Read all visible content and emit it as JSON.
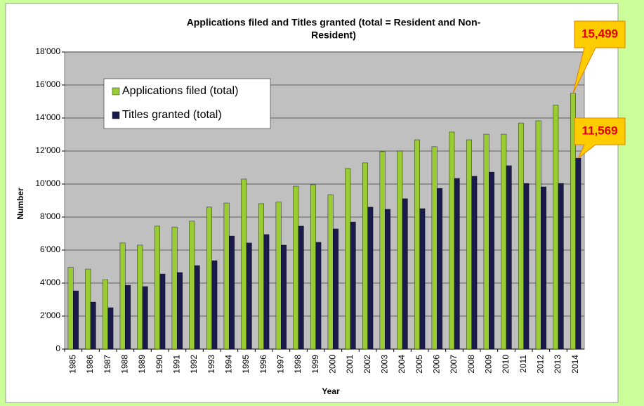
{
  "chart_data": {
    "type": "bar",
    "title": [
      "Applications filed and Titles granted (total = Resident and Non-",
      "Resident)"
    ],
    "x_label": "Year",
    "y_label": "Number",
    "categories": [
      "1985",
      "1986",
      "1987",
      "1988",
      "1989",
      "1990",
      "1991",
      "1992",
      "1993",
      "1994",
      "1995",
      "1996",
      "1997",
      "1998",
      "1999",
      "2000",
      "2001",
      "2002",
      "2003",
      "2004",
      "2005",
      "2006",
      "2007",
      "2008",
      "2009",
      "2010",
      "2011",
      "2012",
      "2013",
      "2014"
    ],
    "series": [
      {
        "name": "Applications filed (total)",
        "color": "#99cc33",
        "values": [
          4950,
          4850,
          4210,
          6430,
          6300,
          7450,
          7400,
          7750,
          8600,
          8850,
          10300,
          8810,
          8900,
          9870,
          9960,
          9360,
          10940,
          11280,
          11960,
          12000,
          12680,
          12260,
          13150,
          12680,
          13020,
          13020,
          13700,
          13830,
          14770,
          15499
        ],
        "value_labels": [
          null,
          null,
          null,
          null,
          null,
          null,
          null,
          null,
          null,
          null,
          null,
          null,
          null,
          null,
          null,
          null,
          null,
          null,
          null,
          null,
          null,
          null,
          null,
          null,
          null,
          null,
          null,
          null,
          null,
          "15,499"
        ]
      },
      {
        "name": "Titles granted (total)",
        "color": "#1a1a4d",
        "values": [
          3530,
          2850,
          2510,
          3870,
          3790,
          4550,
          4640,
          5060,
          5360,
          6850,
          6430,
          6940,
          6300,
          7450,
          6470,
          7280,
          7700,
          8600,
          8470,
          9110,
          8510,
          9740,
          10340,
          10470,
          10720,
          11110,
          10040,
          9830,
          10040,
          11569
        ],
        "value_labels": [
          null,
          null,
          null,
          null,
          null,
          null,
          null,
          null,
          null,
          null,
          null,
          null,
          null,
          null,
          null,
          null,
          null,
          null,
          null,
          null,
          null,
          null,
          null,
          null,
          null,
          null,
          null,
          null,
          null,
          "11,569"
        ]
      }
    ],
    "ylim": [
      0,
      18000
    ],
    "yticks": [
      0,
      {
        "value": 2000,
        "label": "2'000"
      },
      {
        "value": 4000,
        "label": "4'000"
      },
      {
        "value": 6000,
        "label": "6'000"
      },
      {
        "value": 8000,
        "label": "8'000"
      },
      {
        "value": 10000,
        "label": "10'000"
      },
      {
        "value": 12000,
        "label": "12'000"
      },
      {
        "value": 14000,
        "label": "14'000"
      },
      {
        "value": 16000,
        "label": "16'000"
      },
      {
        "value": 18000,
        "label": "18'000"
      }
    ],
    "grid": true,
    "legend": "upper left",
    "plot_background": "#c0c0c0"
  }
}
